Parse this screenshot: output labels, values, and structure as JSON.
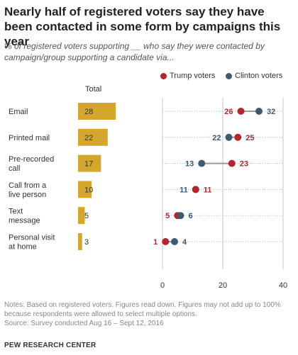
{
  "title": "Nearly half of registered voters say they have been contacted in some form by campaigns this year",
  "subtitle": "% of registered voters supporting __ who say they were contacted by campaign/group supporting a candidate via...",
  "total_header": "Total",
  "legend": {
    "trump": "Trump voters",
    "clinton": "Clinton voters"
  },
  "colors": {
    "trump": "#b5262b",
    "clinton": "#3d5a73",
    "bar": "#d4a72c",
    "grid": "#c7c7c7"
  },
  "notes": "Notes: Based on registered voters. Figures read down. Figures may not add up to 100% because respondents were allowed to select multiple options.",
  "source": "Source: Survey conducted Aug 16 – Sept 12, 2016",
  "footer": "PEW RESEARCH CENTER",
  "chart_data": {
    "type": "dot",
    "categories": [
      [
        "Email"
      ],
      [
        "Printed mail"
      ],
      [
        "Pre-recorded",
        "call"
      ],
      [
        "Call from a",
        "live person"
      ],
      [
        "Text",
        "message"
      ],
      [
        "Personal visit",
        "at home"
      ]
    ],
    "totals": [
      28,
      22,
      17,
      10,
      5,
      3
    ],
    "series": [
      {
        "name": "Trump voters",
        "values": [
          26,
          25,
          23,
          11,
          5,
          1
        ]
      },
      {
        "name": "Clinton voters",
        "values": [
          32,
          22,
          13,
          11,
          6,
          4
        ]
      }
    ],
    "xlim": [
      0,
      40
    ],
    "xticks": [
      0,
      20,
      40
    ],
    "grid": true
  }
}
